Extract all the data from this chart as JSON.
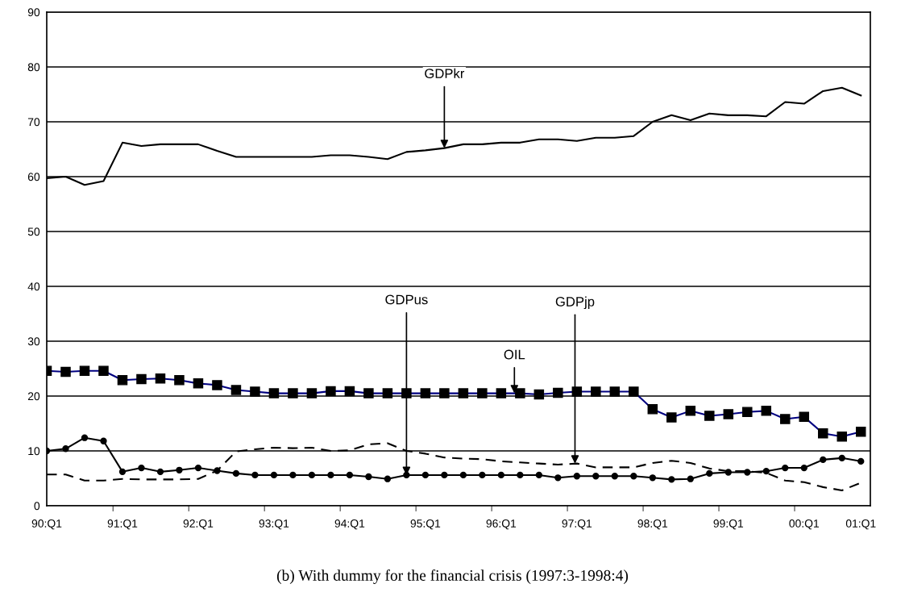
{
  "chart_data": {
    "type": "line",
    "categories": [
      "90:Q1",
      null,
      null,
      null,
      "91:Q1",
      null,
      null,
      null,
      "92:Q1",
      null,
      null,
      null,
      "93:Q1",
      null,
      null,
      null,
      "94:Q1",
      null,
      null,
      null,
      "95:Q1",
      null,
      null,
      null,
      "96:Q1",
      null,
      null,
      null,
      "97:Q1",
      null,
      null,
      null,
      "98:Q1",
      null,
      null,
      null,
      "99:Q1",
      null,
      null,
      null,
      "00:Q1",
      null,
      null,
      "01:Q1"
    ],
    "series": [
      {
        "color": "#000000",
        "marker": "none",
        "line_style": "solid",
        "values": [
          59.7,
          60.0,
          58.5,
          59.2,
          66.2,
          65.6,
          65.9,
          65.9,
          65.9,
          64.7,
          63.6,
          63.6,
          63.6,
          63.6,
          63.6,
          63.9,
          63.9,
          63.6,
          63.2,
          64.5,
          64.8,
          65.2,
          65.9,
          65.9,
          66.2,
          66.2,
          66.8,
          66.8,
          66.5,
          67.1,
          67.1,
          67.4,
          70.0,
          71.2,
          70.3,
          71.5,
          71.2,
          71.2,
          71.0,
          73.6,
          73.3,
          75.6,
          76.2,
          74.8
        ]
      },
      {
        "color": "#000080",
        "marker": "square",
        "line_style": "solid",
        "values": [
          24.6,
          24.4,
          24.6,
          24.6,
          22.9,
          23.1,
          23.2,
          22.9,
          22.3,
          22.0,
          21.1,
          20.8,
          20.5,
          20.5,
          20.5,
          20.9,
          20.9,
          20.5,
          20.5,
          20.5,
          20.5,
          20.5,
          20.5,
          20.5,
          20.5,
          20.5,
          20.3,
          20.6,
          20.8,
          20.8,
          20.8,
          20.8,
          17.6,
          16.1,
          17.3,
          16.4,
          16.7,
          17.1,
          17.3,
          15.8,
          16.2,
          13.2,
          12.6,
          13.5
        ]
      },
      {
        "color": "#000000",
        "marker": "circle",
        "line_style": "solid",
        "values": [
          10.0,
          10.4,
          12.4,
          11.8,
          6.2,
          6.9,
          6.2,
          6.5,
          6.9,
          6.4,
          5.9,
          5.6,
          5.6,
          5.6,
          5.6,
          5.6,
          5.6,
          5.3,
          4.9,
          5.6,
          5.6,
          5.6,
          5.6,
          5.6,
          5.6,
          5.6,
          5.6,
          5.1,
          5.4,
          5.4,
          5.4,
          5.4,
          5.1,
          4.8,
          4.9,
          5.9,
          6.1,
          6.1,
          6.3,
          6.9,
          6.9,
          8.4,
          8.7,
          8.1
        ]
      },
      {
        "color": "#000000",
        "marker": "none",
        "line_style": "dashed",
        "values": [
          5.7,
          5.7,
          4.6,
          4.6,
          4.9,
          4.8,
          4.8,
          4.8,
          4.9,
          6.4,
          9.9,
          10.3,
          10.6,
          10.5,
          10.6,
          10.0,
          10.1,
          11.2,
          11.4,
          10.0,
          9.5,
          8.8,
          8.6,
          8.5,
          8.1,
          7.9,
          7.7,
          7.5,
          7.7,
          7.0,
          7.0,
          7.0,
          7.8,
          8.2,
          7.8,
          6.8,
          6.3,
          6.3,
          6.0,
          4.6,
          4.3,
          3.4,
          2.8,
          4.2
        ]
      }
    ],
    "ylim": [
      0,
      90
    ],
    "yticks": [
      0,
      10,
      20,
      30,
      40,
      50,
      60,
      70,
      80,
      90
    ],
    "grid": "y",
    "legend": false,
    "annotations": [
      {
        "text": "GDPkr"
      },
      {
        "text": "GDPus"
      },
      {
        "text": "OIL"
      },
      {
        "text": "GDPjp"
      },
      "(b) With dummy for the financial crisis (1997:3-1998:4)"
    ]
  }
}
